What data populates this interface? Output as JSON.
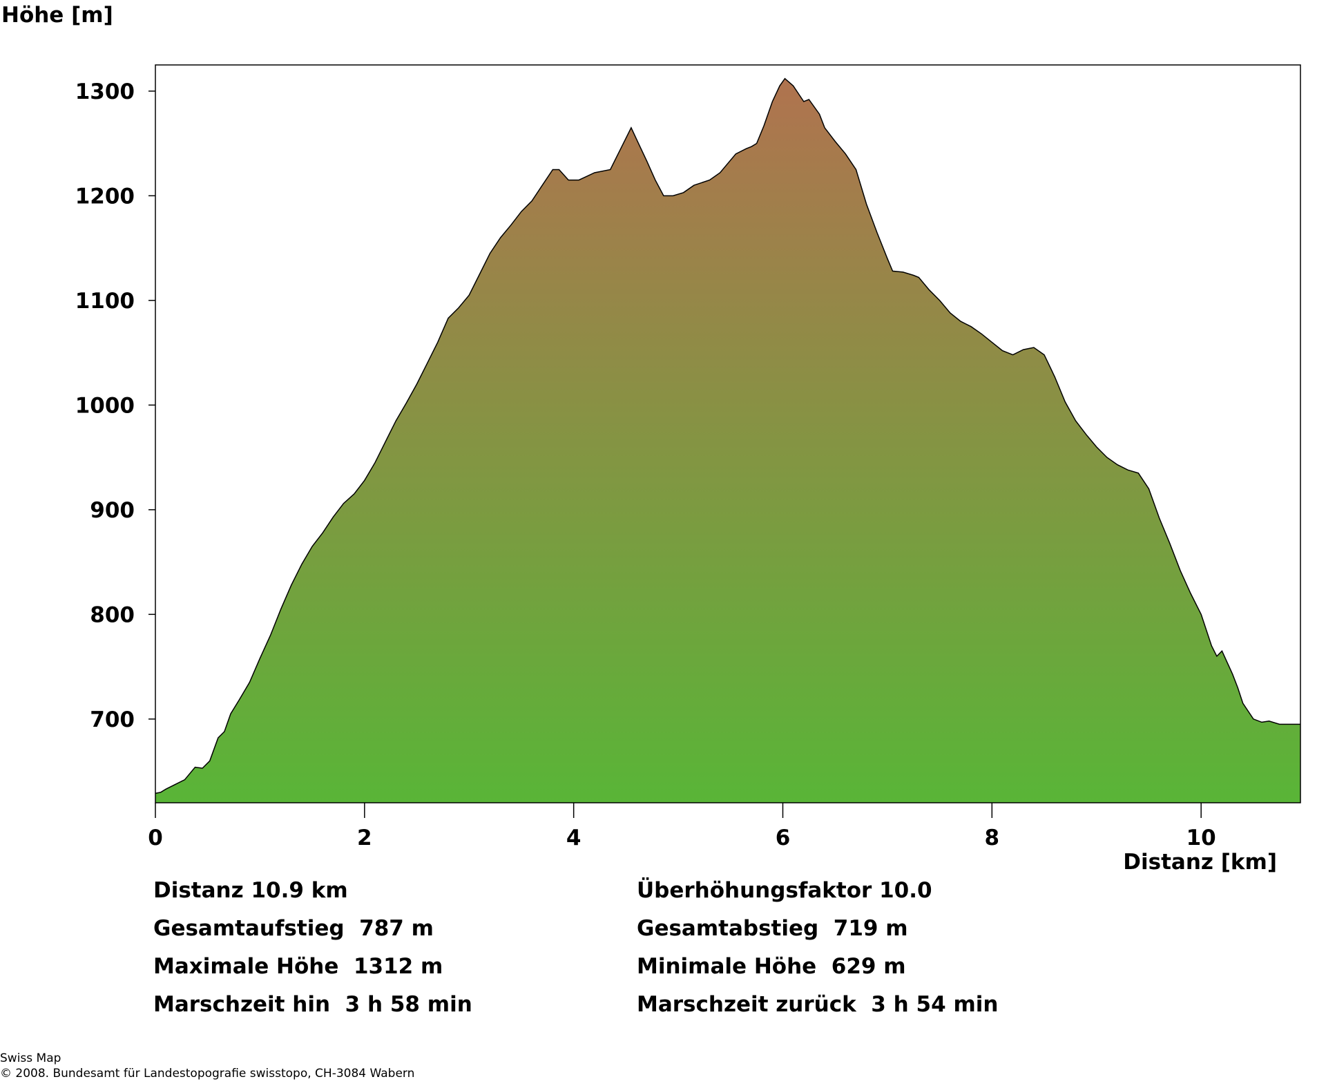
{
  "chart_data": {
    "type": "area",
    "ylabel": "Höhe [m]",
    "xlabel": "Distanz [km]",
    "xlim": [
      0,
      10.95
    ],
    "ylim": [
      620,
      1325
    ],
    "x_ticks": [
      0,
      2,
      4,
      6,
      8,
      10
    ],
    "y_ticks": [
      700,
      800,
      900,
      1000,
      1100,
      1200,
      1300
    ],
    "grid": false,
    "fill_gradient": {
      "top": "#B0734F",
      "bottom": "#59B537"
    },
    "series": [
      {
        "x": [
          0,
          0.05,
          0.1,
          0.2,
          0.28,
          0.38,
          0.45,
          0.52,
          0.6,
          0.66,
          0.72,
          0.8,
          0.9,
          1.0,
          1.1,
          1.2,
          1.3,
          1.4,
          1.5,
          1.6,
          1.7,
          1.8,
          1.9,
          2.0,
          2.1,
          2.2,
          2.3,
          2.4,
          2.5,
          2.6,
          2.7,
          2.8,
          2.9,
          3.0,
          3.1,
          3.2,
          3.3,
          3.4,
          3.5,
          3.6,
          3.7,
          3.8,
          3.86,
          3.95,
          4.05,
          4.2,
          4.35,
          4.45,
          4.55,
          4.62,
          4.7,
          4.78,
          4.86,
          4.95,
          5.05,
          5.15,
          5.3,
          5.4,
          5.55,
          5.65,
          5.7,
          5.75,
          5.82,
          5.9,
          5.97,
          6.02,
          6.1,
          6.2,
          6.25,
          6.35,
          6.4,
          6.5,
          6.6,
          6.7,
          6.8,
          6.9,
          7.0,
          7.05,
          7.15,
          7.25,
          7.3,
          7.4,
          7.5,
          7.6,
          7.7,
          7.8,
          7.9,
          8.0,
          8.1,
          8.2,
          8.3,
          8.4,
          8.5,
          8.6,
          8.7,
          8.8,
          8.9,
          9.0,
          9.1,
          9.2,
          9.3,
          9.4,
          9.5,
          9.6,
          9.7,
          9.8,
          9.9,
          10.0,
          10.1,
          10.15,
          10.2,
          10.3,
          10.35,
          10.4,
          10.5,
          10.58,
          10.65,
          10.75,
          10.85,
          10.95
        ],
        "values": [
          629,
          630,
          633,
          638,
          642,
          654,
          653,
          660,
          682,
          688,
          705,
          718,
          735,
          758,
          780,
          805,
          828,
          848,
          865,
          878,
          893,
          906,
          915,
          928,
          945,
          965,
          985,
          1002,
          1020,
          1040,
          1060,
          1083,
          1093,
          1105,
          1125,
          1145,
          1160,
          1172,
          1185,
          1195,
          1210,
          1225,
          1225,
          1215,
          1215,
          1222,
          1225,
          1245,
          1265,
          1250,
          1233,
          1215,
          1200,
          1200,
          1203,
          1210,
          1215,
          1222,
          1240,
          1245,
          1247,
          1250,
          1267,
          1290,
          1305,
          1312,
          1305,
          1290,
          1292,
          1278,
          1265,
          1252,
          1240,
          1225,
          1192,
          1165,
          1140,
          1128,
          1127,
          1124,
          1122,
          1110,
          1100,
          1088,
          1080,
          1075,
          1068,
          1060,
          1052,
          1048,
          1053,
          1055,
          1048,
          1027,
          1003,
          985,
          972,
          960,
          950,
          943,
          938,
          935,
          920,
          892,
          868,
          842,
          820,
          800,
          770,
          760,
          765,
          743,
          730,
          715,
          700,
          697,
          698,
          695,
          695,
          695
        ]
      }
    ]
  },
  "stats": {
    "distance": "Distanz 10.9 km",
    "exaggeration": "Überhöhungsfaktor 10.0",
    "total_ascent": "Gesamtaufstieg  787 m",
    "total_descent": "Gesamtabstieg  719 m",
    "max_height": "Maximale Höhe  1312 m",
    "min_height": "Minimale Höhe  629 m",
    "time_forward": "Marschzeit hin  3 h 58 min",
    "time_back": "Marschzeit zurück  3 h 54 min"
  },
  "footer": {
    "source": "Swiss Map",
    "copyright": "© 2008. Bundesamt für Landestopografie swisstopo, CH-3084 Wabern"
  }
}
